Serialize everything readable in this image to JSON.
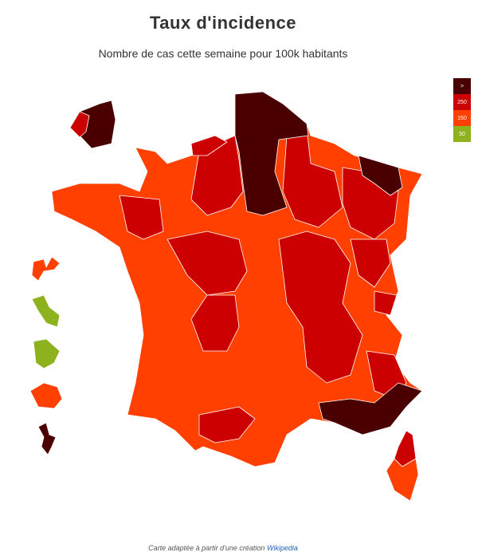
{
  "title": "Taux d'incidence",
  "subtitle": "Nombre de cas cette semaine pour 100k habitants",
  "legend": [
    {
      "label": ">",
      "color": "#4a0000"
    },
    {
      "label": "250",
      "color": "#cc0000"
    },
    {
      "label": "150",
      "color": "#ff4000"
    },
    {
      "label": "50",
      "color": "#8db21e"
    }
  ],
  "footer": {
    "text": "Carte adaptée à partir d'une création",
    "link": "Wikipedia"
  }
}
